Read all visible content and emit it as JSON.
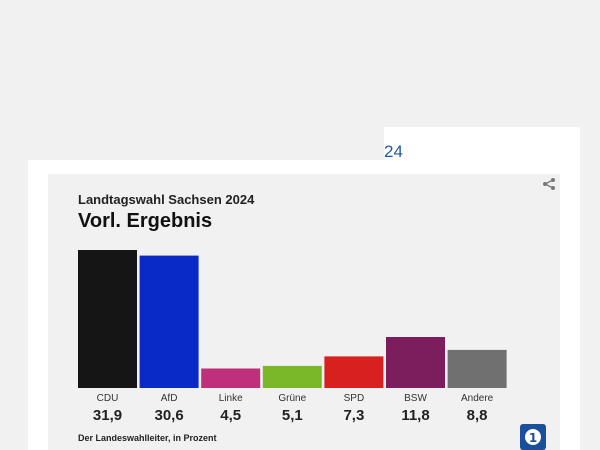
{
  "tab_number": "24",
  "header": {
    "subtitle": "Landtagswahl Sachsen 2024",
    "title": "Vorl. Ergebnis"
  },
  "share_icon": "share-icon",
  "logo_icon": "ard-logo-icon",
  "logo_text": "1",
  "source": "Der Landeswahlleiter, in Prozent",
  "chart_data": {
    "type": "bar",
    "title": "Vorl. Ergebnis",
    "subtitle": "Landtagswahl Sachsen 2024",
    "categories": [
      "CDU",
      "AfD",
      "Linke",
      "Grüne",
      "SPD",
      "BSW",
      "Andere"
    ],
    "values": [
      31.9,
      30.6,
      4.5,
      5.1,
      7.3,
      11.8,
      8.8
    ],
    "labels": [
      "31,9",
      "30,6",
      "4,5",
      "5,1",
      "7,3",
      "11,8",
      "8,8"
    ],
    "colors": [
      "#151515",
      "#0a2ac8",
      "#c0307a",
      "#7ab829",
      "#d8201f",
      "#7c1d5e",
      "#707070"
    ],
    "ylim": [
      0,
      31.9
    ],
    "grid": false,
    "legend": "none"
  }
}
